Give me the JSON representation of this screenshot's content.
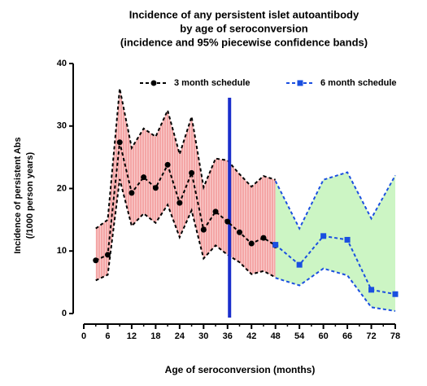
{
  "chart_data": {
    "type": "line",
    "title": [
      "Incidence of any persistent islet autoantibody",
      "by age of seroconversion",
      "(incidence and 95% piecewise confidence bands)"
    ],
    "xlabel": "Age of seroconversion (months)",
    "ylabel": [
      "Incidence of persistent Abs",
      "(/1000 person years)"
    ],
    "xlim": [
      0,
      78
    ],
    "xticks": [
      0,
      6,
      12,
      18,
      24,
      30,
      36,
      42,
      48,
      54,
      60,
      66,
      72,
      78
    ],
    "xminorticks": [
      3,
      9,
      15,
      21,
      27,
      33,
      39,
      45,
      51,
      57,
      63,
      69,
      75
    ],
    "ylim": [
      0,
      40
    ],
    "yticks": [
      0,
      10,
      20,
      30,
      40
    ],
    "vline": 36.5,
    "vline_color": "#1a2ecc",
    "series": [
      {
        "name": "3 month schedule",
        "color": "#000000",
        "band_color": "#f4a6a6",
        "marker": "circle",
        "x": [
          3,
          6,
          9,
          12,
          15,
          18,
          21,
          24,
          27,
          30,
          33,
          36,
          39,
          42,
          45,
          48
        ],
        "values": [
          8.5,
          9.4,
          27.4,
          19.3,
          21.8,
          20.1,
          23.8,
          17.7,
          22.5,
          13.4,
          16.3,
          14.7,
          13.0,
          11.2,
          12.1,
          10.9
        ],
        "upper": [
          13.6,
          15,
          36,
          26.5,
          29.6,
          28.3,
          32.5,
          25.5,
          31.5,
          20.2,
          24.8,
          24.5,
          22.3,
          20.3,
          22,
          21.4
        ],
        "lower": [
          5.3,
          6.2,
          21.5,
          14,
          16,
          14.5,
          17.4,
          12.2,
          16.5,
          8.8,
          10.9,
          9.4,
          8.2,
          6.3,
          6.8,
          5.8
        ]
      },
      {
        "name": "6 month schedule",
        "color": "#1a4fe0",
        "band_color": "#ccf5c4",
        "marker": "square",
        "x": [
          48,
          54,
          60,
          66,
          72,
          78
        ],
        "values": [
          11.0,
          7.8,
          12.4,
          11.8,
          3.8,
          3.1
        ],
        "upper": [
          21.2,
          13.6,
          21.4,
          22.6,
          15.2,
          22.1
        ],
        "lower": [
          5.7,
          4.5,
          7.2,
          6.1,
          1,
          0.4
        ]
      }
    ]
  }
}
